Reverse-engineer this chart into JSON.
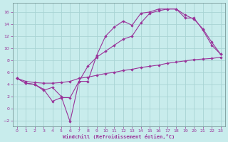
{
  "xlabel": "Windchill (Refroidissement éolien,°C)",
  "background_color": "#c8ecec",
  "grid_color": "#a8d4d4",
  "line_color": "#993399",
  "xlim": [
    -0.5,
    23.5
  ],
  "ylim": [
    -3.0,
    17.5
  ],
  "xticks": [
    0,
    1,
    2,
    3,
    4,
    5,
    6,
    7,
    8,
    9,
    10,
    11,
    12,
    13,
    14,
    15,
    16,
    17,
    18,
    19,
    20,
    21,
    22,
    23
  ],
  "yticks": [
    -2,
    0,
    2,
    4,
    6,
    8,
    10,
    12,
    14,
    16
  ],
  "line1_x": [
    0,
    1,
    2,
    3,
    4,
    5,
    6,
    7,
    8,
    9,
    10,
    11,
    12,
    13,
    14,
    15,
    16,
    17,
    18,
    19,
    20,
    21,
    22,
    23
  ],
  "line1_y": [
    5.0,
    4.5,
    4.3,
    4.2,
    4.2,
    4.3,
    4.5,
    5.0,
    5.2,
    5.5,
    5.8,
    6.0,
    6.3,
    6.5,
    6.8,
    7.0,
    7.2,
    7.5,
    7.7,
    7.9,
    8.1,
    8.2,
    8.3,
    8.5
  ],
  "line2_x": [
    0,
    1,
    2,
    3,
    4,
    5,
    6,
    7,
    8,
    9,
    10,
    11,
    12,
    13,
    14,
    15,
    16,
    17,
    18,
    19,
    20,
    21,
    22,
    23
  ],
  "line2_y": [
    5.0,
    4.2,
    4.0,
    3.2,
    1.2,
    1.8,
    1.8,
    4.5,
    7.0,
    8.5,
    9.5,
    10.5,
    11.5,
    12.0,
    14.2,
    15.8,
    16.2,
    16.5,
    16.5,
    15.5,
    14.8,
    13.2,
    11.0,
    9.0
  ],
  "line3_x": [
    0,
    1,
    2,
    3,
    4,
    5,
    6,
    7,
    8,
    9,
    10,
    11,
    12,
    13,
    14,
    15,
    16,
    17,
    18,
    19,
    20,
    21,
    22,
    23
  ],
  "line3_y": [
    5.0,
    4.2,
    4.0,
    3.0,
    3.5,
    2.0,
    -2.2,
    4.5,
    4.5,
    8.8,
    12.0,
    13.5,
    14.5,
    13.8,
    15.8,
    16.0,
    16.5,
    16.5,
    16.5,
    15.0,
    15.0,
    13.0,
    10.5,
    9.0
  ]
}
